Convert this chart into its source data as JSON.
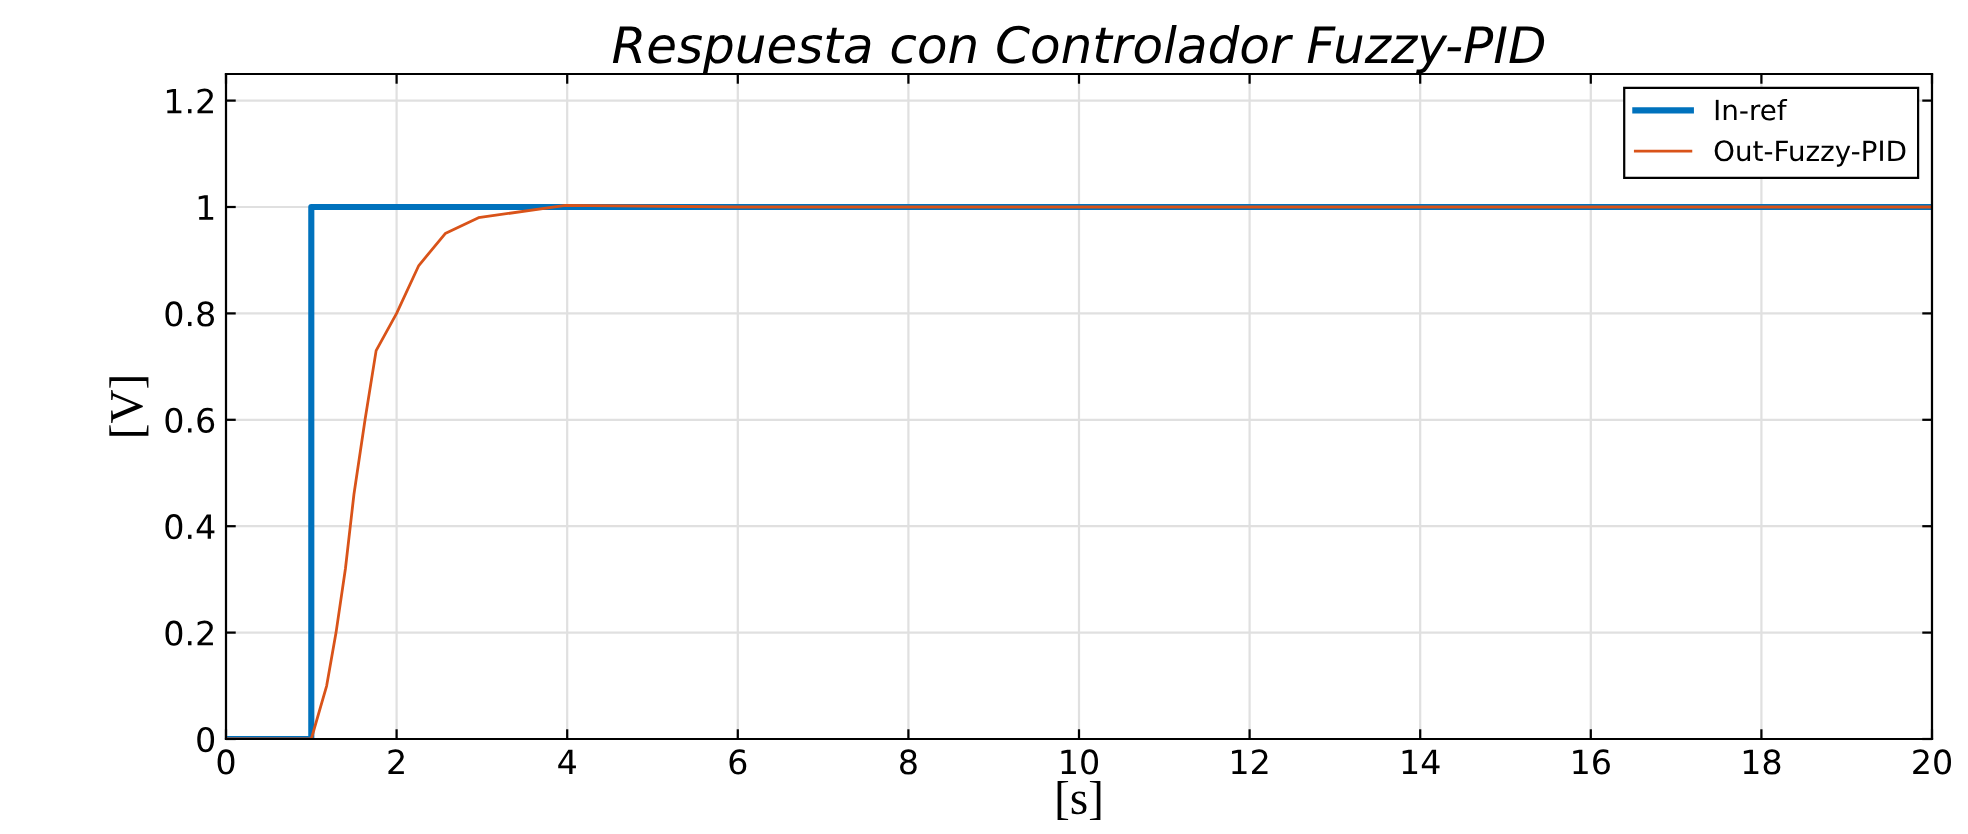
{
  "chart_data": {
    "type": "line",
    "title": "Respuesta con Controlador Fuzzy-PID",
    "xlabel": "[s]",
    "ylabel": "[V]",
    "xlim": [
      0,
      20
    ],
    "xticks": [
      0,
      2,
      4,
      6,
      8,
      10,
      12,
      14,
      16,
      18,
      20
    ],
    "ylim": [
      0,
      1.25
    ],
    "yticks": [
      0,
      0.2,
      0.4,
      0.6,
      0.8,
      1,
      1.2
    ],
    "grid": true,
    "legend": "top right",
    "line_style": "solid",
    "marker": "none",
    "series": [
      {
        "name": "In-ref",
        "color": "#0072bd",
        "x": [
          0,
          1,
          1,
          20
        ],
        "values": [
          0,
          0,
          1,
          1
        ]
      },
      {
        "name": "Out-Fuzzy-PID",
        "color": "#d95319",
        "x": [
          0,
          1,
          1.18,
          1.29,
          1.4,
          1.5,
          1.63,
          1.76,
          2.0,
          2.26,
          2.57,
          2.96,
          3.98,
          6,
          20
        ],
        "values": [
          0,
          0,
          0.1,
          0.2,
          0.32,
          0.46,
          0.6,
          0.73,
          0.8,
          0.89,
          0.95,
          0.98,
          1.003,
          1,
          1
        ]
      }
    ]
  }
}
